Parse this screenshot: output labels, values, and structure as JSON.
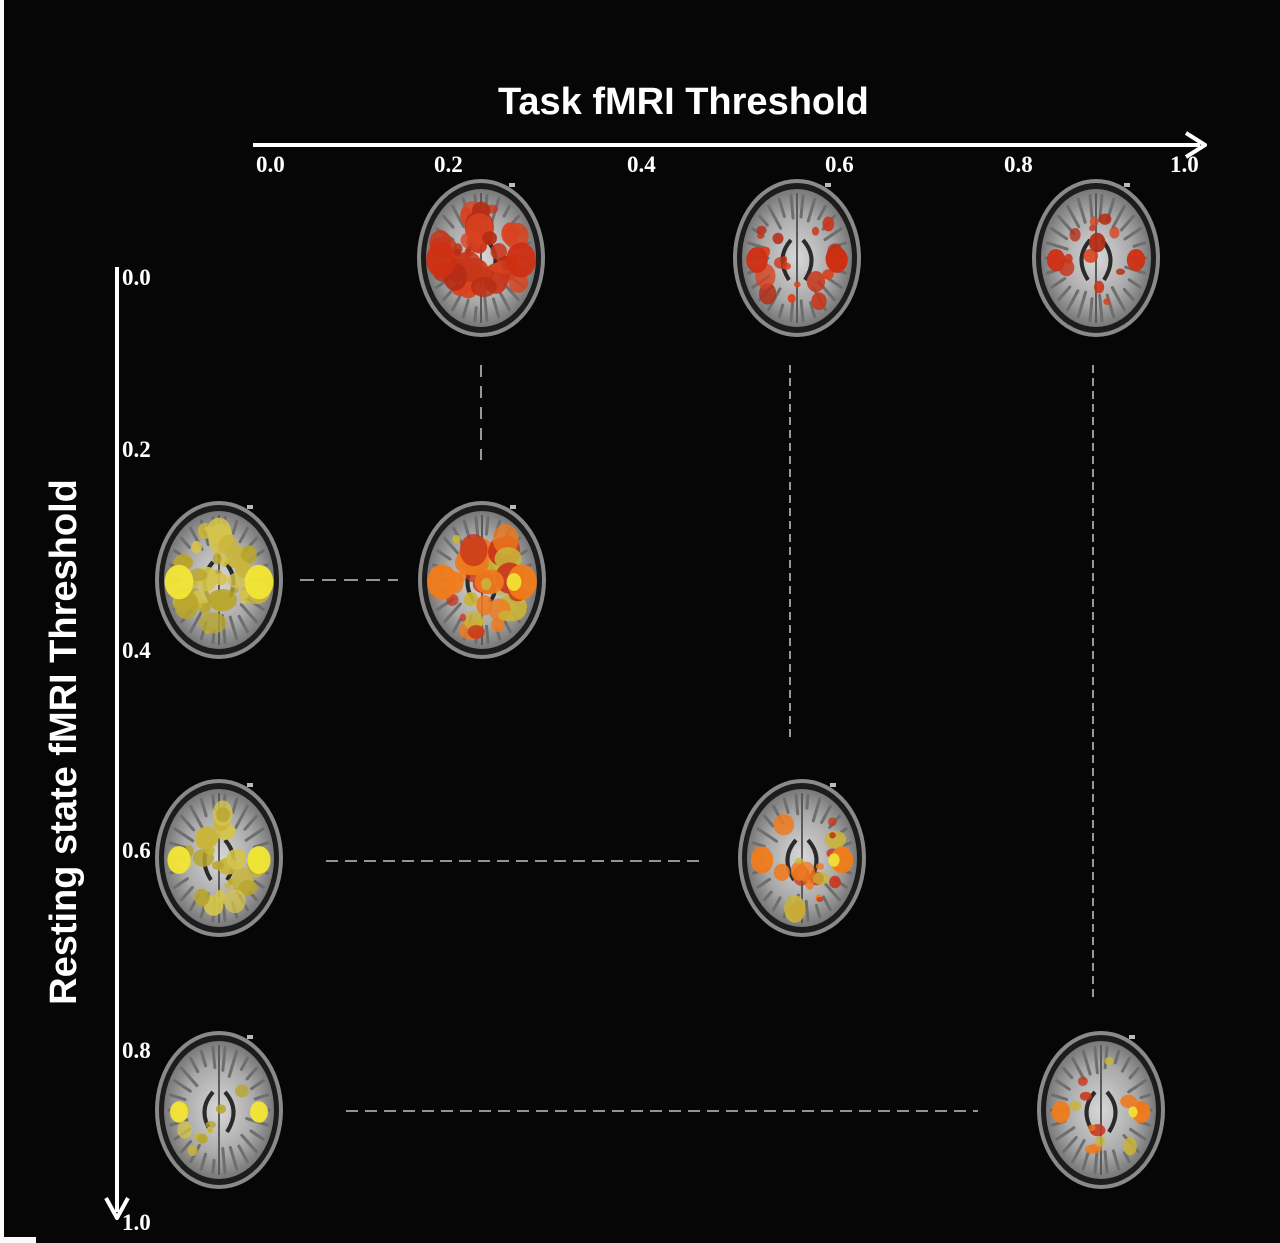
{
  "x_axis": {
    "title": "Task fMRI Threshold",
    "ticks": [
      "0.0",
      "0.2",
      "0.4",
      "0.6",
      "0.8",
      "1.0"
    ]
  },
  "y_axis": {
    "title": "Resting state fMRI Threshold",
    "ticks": [
      "0.0",
      "0.2",
      "0.4",
      "0.6",
      "0.8",
      "1.0"
    ]
  },
  "colors": {
    "background": "#060606",
    "axis": "#ffffff",
    "task_activation": "#c8361a",
    "resting_activation": "#c9b53a",
    "overlap_activation": "#ee7a1e"
  },
  "panels": [
    {
      "id": "task-0.2",
      "task_threshold": 0.2,
      "rest_threshold": null,
      "overlay": "task",
      "coverage": 0.85
    },
    {
      "id": "task-0.6",
      "task_threshold": 0.6,
      "rest_threshold": null,
      "overlay": "task",
      "coverage": 0.35
    },
    {
      "id": "task-1.0",
      "task_threshold": 1.0,
      "rest_threshold": null,
      "overlay": "task",
      "coverage": 0.15
    },
    {
      "id": "rest-0.3",
      "task_threshold": null,
      "rest_threshold": 0.3,
      "overlay": "rest",
      "coverage": 0.8
    },
    {
      "id": "combined-0.2-0.3",
      "task_threshold": 0.2,
      "rest_threshold": 0.3,
      "overlay": "combined",
      "coverage": 0.85
    },
    {
      "id": "rest-0.6",
      "task_threshold": null,
      "rest_threshold": 0.6,
      "overlay": "rest",
      "coverage": 0.45
    },
    {
      "id": "combined-0.6-0.6",
      "task_threshold": 0.6,
      "rest_threshold": 0.6,
      "overlay": "combined",
      "coverage": 0.4
    },
    {
      "id": "rest-0.9",
      "task_threshold": null,
      "rest_threshold": 0.9,
      "overlay": "rest",
      "coverage": 0.12
    },
    {
      "id": "combined-1.0-0.9",
      "task_threshold": 1.0,
      "rest_threshold": 0.9,
      "overlay": "combined",
      "coverage": 0.15
    }
  ]
}
